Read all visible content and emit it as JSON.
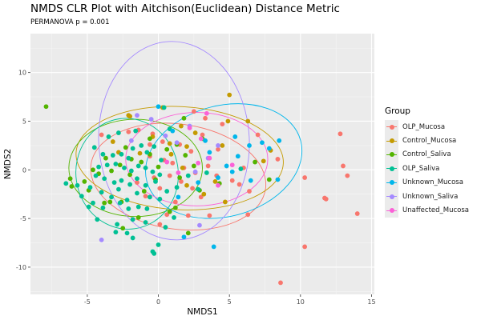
{
  "chart_data": {
    "type": "scatter",
    "title": "NMDS CLR Plot with Aitchison(Euclidean) Distance Metric",
    "subtitle": "PERMANOVA p =  0.001",
    "xlabel": "NMDS1",
    "ylabel": "NMDS2",
    "xlim": [
      -9.0,
      15.2
    ],
    "ylim": [
      -12.8,
      14.0
    ],
    "xticks": [
      -5,
      0,
      5,
      10,
      15
    ],
    "yticks": [
      -10,
      -5,
      0,
      5,
      10
    ],
    "xtick_labels": [
      "-5",
      "0",
      "5",
      "10",
      "15"
    ],
    "ytick_labels": [
      "-10",
      "-5",
      "0",
      "5",
      "10"
    ],
    "grid": true,
    "legend_title": "Group",
    "legend_position": "right",
    "series": [
      {
        "name": "OLP_Mucosa",
        "color": "#F8766D",
        "ellipse": {
          "cx": 1.4,
          "cy": -0.7,
          "rx": 6.2,
          "ry": 5.4,
          "angle": -8
        },
        "points": [
          [
            -4.0,
            3.6
          ],
          [
            -2.1,
            3.9
          ],
          [
            -1.4,
            4.1
          ],
          [
            -0.4,
            3.7
          ],
          [
            0.3,
            2.9
          ],
          [
            1.5,
            2.6
          ],
          [
            2.3,
            1.9
          ],
          [
            3.1,
            3.6
          ],
          [
            4.5,
            4.7
          ],
          [
            -0.6,
            1.4
          ],
          [
            0.4,
            1.0
          ],
          [
            1.0,
            0.7
          ],
          [
            1.8,
            0.2
          ],
          [
            2.6,
            -0.3
          ],
          [
            3.5,
            0.4
          ],
          [
            4.1,
            -0.6
          ],
          [
            5.2,
            -1.1
          ],
          [
            6.0,
            0.2
          ],
          [
            6.4,
            -2.2
          ],
          [
            0.8,
            -0.6
          ],
          [
            1.6,
            -1.2
          ],
          [
            2.4,
            -1.9
          ],
          [
            3.0,
            -2.8
          ],
          [
            0.1,
            -1.9
          ],
          [
            -0.3,
            -0.8
          ],
          [
            -1.5,
            -1.3
          ],
          [
            1.2,
            -3.3
          ],
          [
            0.6,
            -4.6
          ],
          [
            2.1,
            -4.7
          ],
          [
            3.6,
            -4.7
          ],
          [
            6.3,
            -4.6
          ],
          [
            0.1,
            -5.6
          ],
          [
            -0.6,
            2.6
          ],
          [
            3.3,
            5.3
          ],
          [
            2.5,
            6.0
          ],
          [
            8.4,
            1.1
          ],
          [
            7.0,
            3.6
          ],
          [
            10.3,
            -0.8
          ],
          [
            11.8,
            -3.0
          ],
          [
            11.7,
            -2.9
          ],
          [
            12.8,
            3.7
          ],
          [
            13.0,
            0.4
          ],
          [
            13.3,
            -0.6
          ],
          [
            14.0,
            -4.5
          ],
          [
            10.3,
            -7.9
          ],
          [
            8.6,
            -11.6
          ],
          [
            5.7,
            -1.5
          ],
          [
            -0.9,
            -2.7
          ],
          [
            4.2,
            2.1
          ]
        ]
      },
      {
        "name": "Control_Mucosa",
        "color": "#C49A00",
        "ellipse": {
          "cx": 1.5,
          "cy": 1.2,
          "rx": 7.3,
          "ry": 5.3,
          "angle": -3
        },
        "points": [
          [
            -2.1,
            5.6
          ],
          [
            -2.0,
            5.5
          ],
          [
            0.3,
            6.4
          ],
          [
            5.0,
            7.7
          ],
          [
            -0.4,
            3.4
          ],
          [
            0.8,
            2.7
          ],
          [
            1.6,
            4.5
          ],
          [
            2.6,
            3.8
          ],
          [
            -2.8,
            1.8
          ],
          [
            -3.2,
            2.9
          ],
          [
            0.9,
            1.6
          ],
          [
            2.0,
            2.4
          ],
          [
            4.9,
            5.0
          ],
          [
            2.0,
            -1.6
          ],
          [
            3.2,
            -2.5
          ],
          [
            4.0,
            -1.2
          ],
          [
            7.9,
            2.0
          ],
          [
            6.3,
            5.0
          ],
          [
            4.5,
            2.5
          ],
          [
            7.4,
            0.9
          ],
          [
            4.7,
            -3.3
          ],
          [
            1.7,
            0.2
          ],
          [
            -1.3,
            1.7
          ]
        ]
      },
      {
        "name": "Control_Saliva",
        "color": "#53B400",
        "ellipse": {
          "cx": -1.6,
          "cy": 0.2,
          "rx": 4.7,
          "ry": 5.0,
          "angle": 0
        },
        "points": [
          [
            -7.9,
            6.5
          ],
          [
            -6.2,
            -0.9
          ],
          [
            -6.1,
            -1.7
          ],
          [
            -5.2,
            -1.2
          ],
          [
            -4.6,
            0.0
          ],
          [
            -4.2,
            -0.4
          ],
          [
            -3.7,
            1.2
          ],
          [
            -3.3,
            -0.1
          ],
          [
            -2.7,
            0.5
          ],
          [
            -2.3,
            2.3
          ],
          [
            -1.9,
            1.1
          ],
          [
            -1.2,
            0.8
          ],
          [
            -0.6,
            1.6
          ],
          [
            0.0,
            0.3
          ],
          [
            0.6,
            2.1
          ],
          [
            1.3,
            2.6
          ],
          [
            1.9,
            1.5
          ],
          [
            2.5,
            0.4
          ],
          [
            -3.8,
            -3.4
          ],
          [
            -3.4,
            -3.3
          ],
          [
            -2.6,
            -3.3
          ],
          [
            -2.5,
            -6.0
          ],
          [
            0.8,
            -4.3
          ],
          [
            1.2,
            -3.9
          ],
          [
            2.1,
            -6.5
          ],
          [
            3.1,
            3.2
          ],
          [
            -4.9,
            -2.1
          ],
          [
            -1.0,
            -2.2
          ],
          [
            -0.2,
            -1.0
          ],
          [
            1.5,
            -0.8
          ],
          [
            -2.0,
            -0.5
          ],
          [
            4.3,
            -1.4
          ],
          [
            7.8,
            -1.0
          ],
          [
            6.8,
            0.8
          ],
          [
            2.9,
            -2.1
          ],
          [
            -1.4,
            -4.9
          ],
          [
            1.8,
            5.3
          ],
          [
            -0.6,
            3.2
          ]
        ]
      },
      {
        "name": "OLP_Saliva",
        "color": "#00C094",
        "ellipse": {
          "cx": -2.2,
          "cy": -0.4,
          "rx": 3.6,
          "ry": 5.7,
          "angle": 8
        },
        "points": [
          [
            -3.5,
            3.4
          ],
          [
            -4.5,
            2.3
          ],
          [
            -3.9,
            1.6
          ],
          [
            -3.2,
            1.5
          ],
          [
            -2.6,
            1.6
          ],
          [
            -2.1,
            1.2
          ],
          [
            -1.8,
            2.2
          ],
          [
            -1.2,
            2.5
          ],
          [
            -0.8,
            1.8
          ],
          [
            -0.3,
            2.4
          ],
          [
            0.2,
            1.0
          ],
          [
            -4.2,
            0.3
          ],
          [
            -3.6,
            0.5
          ],
          [
            -3.0,
            0.6
          ],
          [
            -2.4,
            0.2
          ],
          [
            -1.9,
            -0.1
          ],
          [
            -1.4,
            0.4
          ],
          [
            -0.9,
            0.2
          ],
          [
            -0.4,
            -0.2
          ],
          [
            0.1,
            -0.5
          ],
          [
            -4.4,
            -0.6
          ],
          [
            -3.8,
            -0.9
          ],
          [
            -3.1,
            -1.3
          ],
          [
            -2.6,
            -1.1
          ],
          [
            -2.0,
            -1.5
          ],
          [
            -1.5,
            -0.9
          ],
          [
            -0.9,
            -1.6
          ],
          [
            -0.2,
            -1.2
          ],
          [
            -4.8,
            -1.8
          ],
          [
            -4.0,
            -2.3
          ],
          [
            -3.3,
            -2.8
          ],
          [
            -2.8,
            -2.0
          ],
          [
            -2.2,
            -3.1
          ],
          [
            -1.5,
            -2.4
          ],
          [
            -0.6,
            -2.8
          ],
          [
            0.6,
            -2.2
          ],
          [
            -5.4,
            -2.7
          ],
          [
            -4.6,
            -3.4
          ],
          [
            -3.9,
            -3.9
          ],
          [
            -2.7,
            -3.4
          ],
          [
            -2.1,
            -4.0
          ],
          [
            -1.4,
            -3.8
          ],
          [
            -0.8,
            -4.0
          ],
          [
            1.1,
            -4.9
          ],
          [
            -4.9,
            -3.8
          ],
          [
            -4.3,
            -5.1
          ],
          [
            -2.9,
            -5.6
          ],
          [
            -1.8,
            -5.1
          ],
          [
            -0.9,
            -5.4
          ],
          [
            0.5,
            -5.9
          ],
          [
            -3.0,
            -6.4
          ],
          [
            -2.2,
            -6.5
          ],
          [
            -1.8,
            -7.0
          ],
          [
            -0.4,
            -8.4
          ],
          [
            -0.3,
            -8.6
          ],
          [
            0.0,
            -7.7
          ],
          [
            0.1,
            -3.0
          ],
          [
            1.3,
            -1.8
          ],
          [
            2.1,
            -0.6
          ],
          [
            2.8,
            -2.0
          ],
          [
            -5.7,
            -1.6
          ],
          [
            -6.5,
            -1.4
          ],
          [
            0.8,
            4.2
          ],
          [
            0.4,
            6.4
          ],
          [
            3.4,
            -0.3
          ],
          [
            5.8,
            0.1
          ],
          [
            -2.8,
            3.8
          ],
          [
            -1.6,
            4.0
          ]
        ]
      },
      {
        "name": "Unknown_Mucosa",
        "color": "#00B6EB",
        "ellipse": {
          "cx": 4.6,
          "cy": 0.9,
          "rx": 5.6,
          "ry": 5.7,
          "angle": 15
        },
        "points": [
          [
            0.0,
            6.5
          ],
          [
            1.0,
            4.0
          ],
          [
            3.3,
            3.0
          ],
          [
            4.2,
            -0.8
          ],
          [
            5.4,
            3.4
          ],
          [
            5.6,
            1.4
          ],
          [
            6.4,
            2.5
          ],
          [
            7.3,
            2.8
          ],
          [
            7.8,
            2.2
          ],
          [
            8.5,
            3.0
          ],
          [
            6.5,
            -1.1
          ],
          [
            5.2,
            -0.2
          ],
          [
            3.9,
            -7.9
          ],
          [
            1.8,
            -6.9
          ],
          [
            1.4,
            -2.8
          ],
          [
            2.8,
            -1.3
          ],
          [
            4.8,
            0.4
          ],
          [
            8.4,
            -1.0
          ],
          [
            3.6,
            1.8
          ]
        ]
      },
      {
        "name": "Unknown_Saliva",
        "color": "#A58AFF",
        "ellipse": {
          "cx": 1.1,
          "cy": 3.0,
          "rx": 5.3,
          "ry": 10.2,
          "angle": 3
        },
        "points": [
          [
            -4.0,
            -7.2
          ],
          [
            2.9,
            -5.7
          ],
          [
            -1.5,
            5.6
          ],
          [
            2.2,
            4.5
          ],
          [
            0.5,
            3.5
          ],
          [
            1.3,
            2.8
          ],
          [
            -0.5,
            5.2
          ],
          [
            4.2,
            2.5
          ],
          [
            2.6,
            -0.2
          ],
          [
            3.5,
            1.2
          ],
          [
            -1.9,
            3.0
          ]
        ]
      },
      {
        "name": "Unaffected_Mucosa",
        "color": "#FB61D7",
        "ellipse": {
          "cx": 2.7,
          "cy": 1.1,
          "rx": 5.0,
          "ry": 4.8,
          "angle": 0
        },
        "points": [
          [
            3.4,
            5.8
          ],
          [
            2.2,
            4.3
          ],
          [
            3.6,
            1.2
          ],
          [
            2.8,
            0.7
          ],
          [
            4.2,
            -1.6
          ],
          [
            5.2,
            0.5
          ],
          [
            1.4,
            -0.3
          ],
          [
            0.6,
            0.8
          ],
          [
            3.0,
            3.2
          ]
        ]
      }
    ]
  }
}
